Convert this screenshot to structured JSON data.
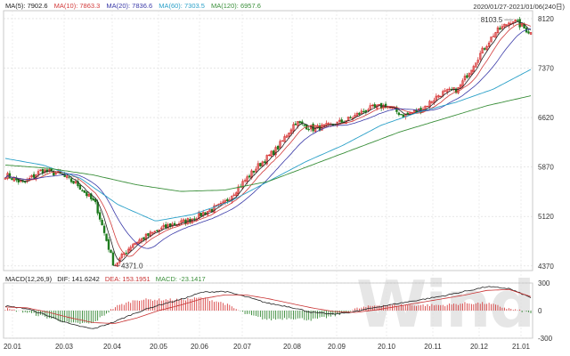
{
  "header": {
    "ma5_label": "MA(5): 7902.6",
    "ma10_label": "MA(10): 7863.3",
    "ma20_label": "MA(20): 7836.6",
    "ma60_label": "MA(60): 7303.5",
    "ma120_label": "MA(120): 6957.6",
    "date_range": "2020/01/27-2021/01/06(240日)"
  },
  "macd_header": {
    "name": "MACD(12,26,9)",
    "dif": "DIF: 141.6242",
    "dea": "DEA: 153.1951",
    "macd": "MACD: -23.1417"
  },
  "colors": {
    "up": "#d42a2a",
    "down": "#1c7a1c",
    "ma5": "#222222",
    "ma10": "#d23a3a",
    "ma20": "#3a3aa8",
    "ma60": "#2aa0c8",
    "ma120": "#3a8f3a"
  },
  "chart_data": {
    "type": "candlestick",
    "x_ticks": [
      "20.01",
      "20.03",
      "20.04",
      "20.05",
      "20.06",
      "20.07",
      "20.08",
      "20.09",
      "20.10",
      "20.11",
      "20.12",
      "21.01"
    ],
    "y_ticks": [
      4370,
      5120,
      5870,
      6620,
      7370,
      8120
    ],
    "ylim": [
      4300,
      8240
    ],
    "annotations": {
      "low": "4371.0",
      "high": "8103.5"
    },
    "price_path": [
      5750,
      5620,
      5820,
      5760,
      5600,
      5300,
      4371,
      4700,
      4850,
      4980,
      5050,
      5180,
      5300,
      5600,
      5900,
      6150,
      6550,
      6450,
      6500,
      6600,
      6750,
      6800,
      6650,
      6750,
      6980,
      7050,
      7500,
      7900,
      8103,
      7900
    ],
    "ma60_path": [
      6000,
      5900,
      5700,
      5300,
      5050,
      5150,
      5350,
      5650,
      5950,
      6200,
      6500,
      6700,
      6850,
      7050,
      7350
    ],
    "ma120_path": [
      5900,
      5850,
      5750,
      5600,
      5500,
      5520,
      5650,
      5900,
      6150,
      6400,
      6600,
      6800,
      6950
    ],
    "macd_ylim": [
      -300,
      300
    ],
    "macd_ticks": [
      300,
      0,
      -300
    ],
    "dif_path": [
      50,
      20,
      -60,
      -150,
      -200,
      -120,
      -20,
      60,
      120,
      200,
      210,
      150,
      80,
      40,
      -20,
      -40,
      -10,
      40,
      80,
      120,
      160,
      210,
      260,
      240,
      141
    ],
    "dea_path": [
      40,
      30,
      -20,
      -80,
      -130,
      -140,
      -80,
      0,
      60,
      130,
      170,
      170,
      130,
      80,
      30,
      -10,
      -20,
      10,
      50,
      90,
      130,
      170,
      220,
      230,
      153
    ]
  }
}
